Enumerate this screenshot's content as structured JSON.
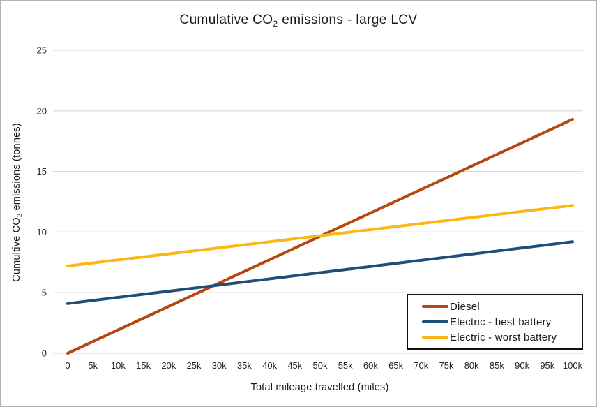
{
  "window": {
    "background": "#ffffff",
    "border_color": "#b3b3b3"
  },
  "title": {
    "pre": "Cumulative CO",
    "sub": "2",
    "post": " emissions - large LCV"
  },
  "y_axis": {
    "label_pre": "Cumultive CO",
    "label_sub": "2",
    "label_post": " emissions (tonnes)",
    "ticks": [
      "0",
      "5",
      "10",
      "15",
      "20",
      "25"
    ]
  },
  "x_axis": {
    "label": "Total mileage travelled (miles)",
    "tick_labels": [
      "0",
      "5k",
      "10k",
      "15k",
      "20k",
      "25k",
      "30k",
      "35k",
      "40k",
      "45k",
      "50k",
      "55k",
      "60k",
      "65k",
      "70k",
      "75k",
      "80k",
      "85k",
      "90k",
      "95k",
      "100k"
    ]
  },
  "legend": {
    "items": [
      {
        "label": "Diesel",
        "color": "#B5470F"
      },
      {
        "label": "Electric - best battery",
        "color": "#1F4E79"
      },
      {
        "label": "Electric - worst battery",
        "color": "#FDB714"
      }
    ]
  },
  "chart_data": {
    "type": "line",
    "title": "Cumulative CO2 emissions - large LCV",
    "xlabel": "Total mileage travelled (miles)",
    "ylabel": "Cumultive CO2 emissions (tonnes)",
    "x": [
      0,
      100000
    ],
    "series": [
      {
        "name": "Diesel",
        "color": "#B5470F",
        "values": [
          0,
          19.3
        ]
      },
      {
        "name": "Electric - best battery",
        "color": "#1F4E79",
        "values": [
          4.1,
          9.2
        ]
      },
      {
        "name": "Electric - worst battery",
        "color": "#FDB714",
        "values": [
          7.2,
          12.2
        ]
      }
    ],
    "xlim": [
      0,
      100000
    ],
    "ylim": [
      0,
      25
    ],
    "x_tick_step": 5000,
    "y_tick_step": 5,
    "grid": "horizontal",
    "gridline_color": "#d9d9d9",
    "line_width": 4,
    "legend_position": "lower right"
  }
}
